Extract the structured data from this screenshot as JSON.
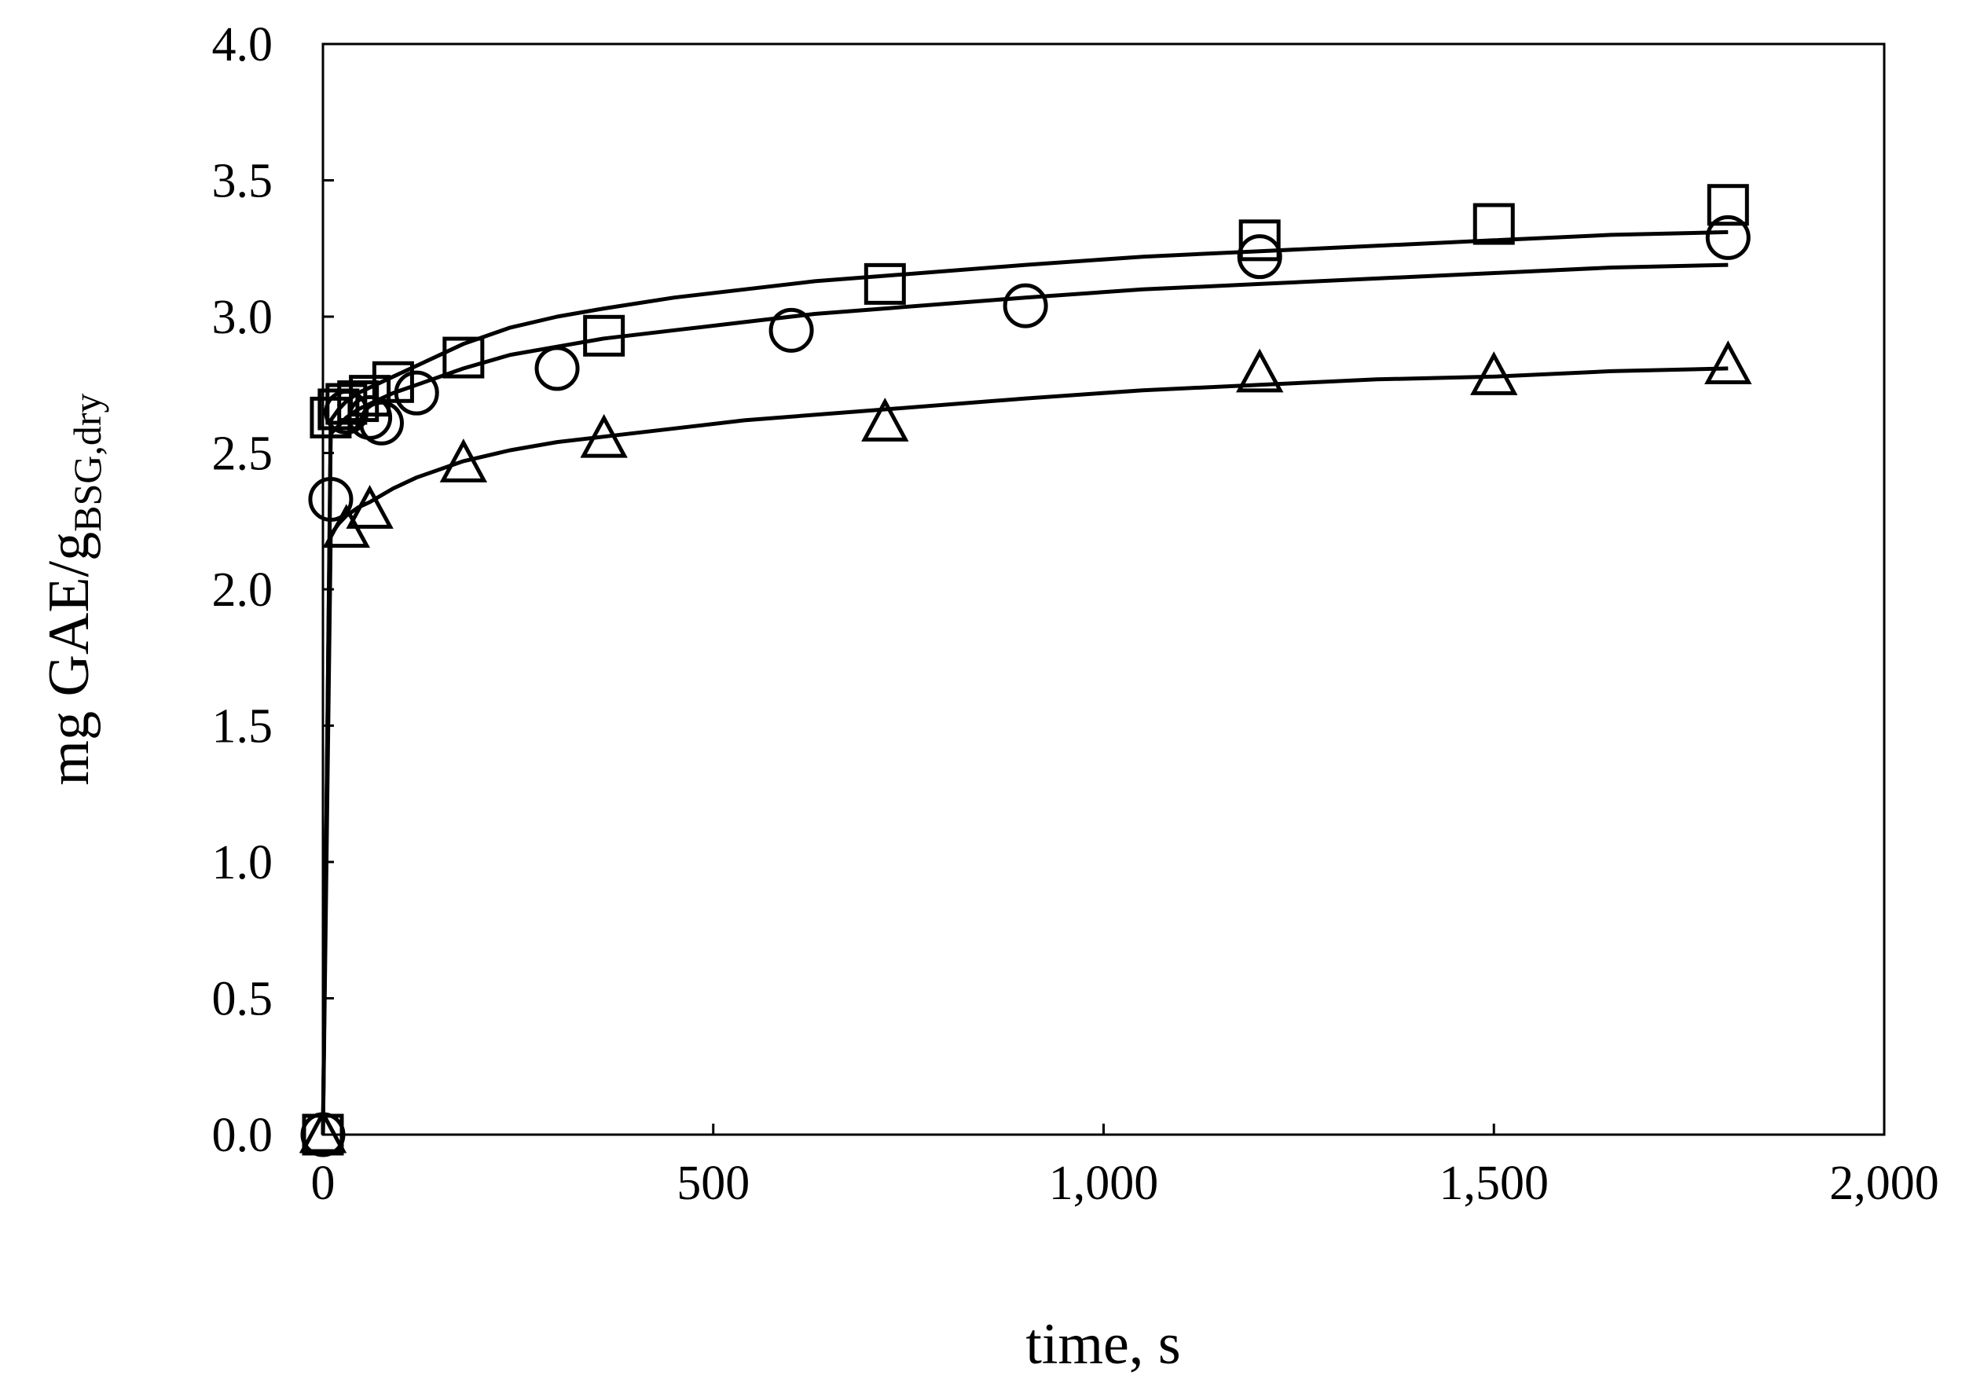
{
  "chart_data": {
    "type": "scatter",
    "title": "",
    "xlabel": "time, s",
    "ylabel": {
      "main": "mg GAE/g",
      "subscript": "BSG,dry"
    },
    "xlim": [
      0,
      2000
    ],
    "ylim": [
      0.0,
      4.0
    ],
    "grid": false,
    "legend": "none",
    "x_ticks": [
      {
        "value": 0,
        "label": "0"
      },
      {
        "value": 500,
        "label": "500"
      },
      {
        "value": 1000,
        "label": "1,000"
      },
      {
        "value": 1500,
        "label": "1,500"
      },
      {
        "value": 2000,
        "label": "2,000"
      }
    ],
    "y_ticks": [
      {
        "value": 0.0,
        "label": "0.0"
      },
      {
        "value": 0.5,
        "label": "0.5"
      },
      {
        "value": 1.0,
        "label": "1.0"
      },
      {
        "value": 1.5,
        "label": "1.5"
      },
      {
        "value": 2.0,
        "label": "2.0"
      },
      {
        "value": 2.5,
        "label": "2.5"
      },
      {
        "value": 3.0,
        "label": "3.0"
      },
      {
        "value": 3.5,
        "label": "3.5"
      },
      {
        "value": 4.0,
        "label": "4.0"
      }
    ],
    "series": [
      {
        "marker": "square",
        "x": [
          0,
          10,
          20,
          30,
          45,
          60,
          90,
          180,
          360,
          720,
          1200,
          1500,
          1800
        ],
        "y": [
          0.0,
          2.63,
          2.66,
          2.68,
          2.69,
          2.71,
          2.76,
          2.85,
          2.93,
          3.12,
          3.28,
          3.34,
          3.41
        ],
        "fit_x": [
          0,
          10,
          20,
          30,
          45,
          60,
          90,
          120,
          180,
          240,
          300,
          360,
          450,
          540,
          630,
          720,
          900,
          1050,
          1200,
          1350,
          1500,
          1650,
          1800
        ],
        "fit_y": [
          0.0,
          2.62,
          2.66,
          2.69,
          2.72,
          2.74,
          2.78,
          2.82,
          2.9,
          2.96,
          3.0,
          3.03,
          3.07,
          3.1,
          3.13,
          3.15,
          3.19,
          3.22,
          3.24,
          3.26,
          3.28,
          3.3,
          3.31
        ]
      },
      {
        "marker": "circle",
        "x": [
          0,
          10,
          30,
          60,
          75,
          120,
          300,
          600,
          900,
          1200,
          1800
        ],
        "y": [
          0.0,
          2.33,
          2.65,
          2.63,
          2.61,
          2.72,
          2.81,
          2.95,
          3.04,
          3.22,
          3.29
        ],
        "fit_x": [
          0,
          10,
          20,
          30,
          45,
          60,
          90,
          120,
          180,
          240,
          300,
          360,
          450,
          540,
          630,
          720,
          900,
          1050,
          1200,
          1350,
          1500,
          1650,
          1800
        ],
        "fit_y": [
          0.0,
          2.57,
          2.6,
          2.63,
          2.66,
          2.68,
          2.72,
          2.75,
          2.81,
          2.86,
          2.89,
          2.92,
          2.95,
          2.98,
          3.01,
          3.03,
          3.07,
          3.1,
          3.12,
          3.14,
          3.16,
          3.18,
          3.19
        ]
      },
      {
        "marker": "triangle",
        "x": [
          0,
          30,
          60,
          180,
          360,
          720,
          1200,
          1500,
          1800
        ],
        "y": [
          0.0,
          2.22,
          2.29,
          2.46,
          2.55,
          2.61,
          2.79,
          2.78,
          2.82
        ],
        "fit_x": [
          0,
          10,
          20,
          30,
          45,
          60,
          90,
          120,
          180,
          240,
          300,
          360,
          450,
          540,
          630,
          720,
          900,
          1050,
          1200,
          1350,
          1500,
          1650,
          1800
        ],
        "fit_y": [
          0.0,
          2.2,
          2.24,
          2.27,
          2.3,
          2.32,
          2.37,
          2.41,
          2.47,
          2.51,
          2.54,
          2.56,
          2.59,
          2.62,
          2.64,
          2.66,
          2.7,
          2.73,
          2.75,
          2.77,
          2.78,
          2.8,
          2.81
        ]
      }
    ]
  }
}
